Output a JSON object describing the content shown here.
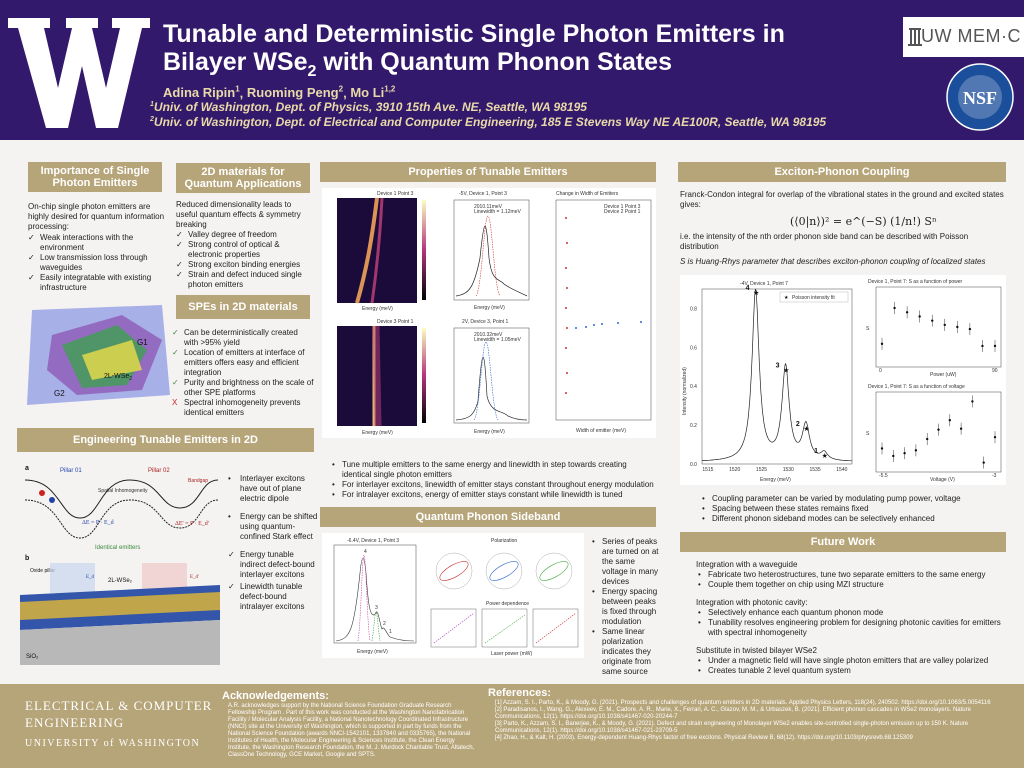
{
  "header": {
    "title_line1": "Tunable and Deterministic Single Photon Emitters in",
    "title_line2_a": "Bilayer WSe",
    "title_line2_sub": "2",
    "title_line2_b": " with Quantum Phonon States",
    "authors": [
      {
        "name": "Adina Ripin",
        "sup": "1"
      },
      {
        "name": "Ruoming Peng",
        "sup": "2"
      },
      {
        "name": "Mo Li",
        "sup": "1,2"
      }
    ],
    "aff1_sup": "1",
    "aff1": "Univ. of Washington, Dept. of Physics, 3910 15th Ave. NE, Seattle, WA 98195",
    "aff2_sup": "2",
    "aff2": "Univ. of Washington, Dept. of Electrical and Computer Engineering, 185 E Stevens Way NE AE100R, Seattle, WA 98195",
    "logo_right": "UW MEM·C",
    "logo_nsf": "NSF"
  },
  "importance": {
    "title": "Importance of Single Photon Emitters",
    "intro": "On-chip single photon emitters are highly desired for quantum information processing:",
    "items": [
      "Weak interactions with the environment",
      "Low transmission loss through waveguides",
      "Easily integratable with existing infrastructure"
    ],
    "label_g1": "G1",
    "label_g2": "G2",
    "label_wse2": "2L-WSe",
    "label_wse2_sub": "2"
  },
  "twod": {
    "title": "2D materials for Quantum Applications",
    "intro": "Reduced dimensionality leads to useful quantum effects & symmetry breaking",
    "items": [
      "Valley degree of freedom",
      "Strong control of optical & electronic properties",
      "Strong exciton binding energies",
      "Strain and defect induced single photon emitters"
    ]
  },
  "spes": {
    "title": "SPEs in 2D materials",
    "items": [
      {
        "mark": "✓",
        "text": "Can be deterministically created with >95% yield"
      },
      {
        "mark": "✓",
        "text": "Location of emitters at interface of emitters offers easy and efficient integration"
      },
      {
        "mark": "✓",
        "text": "Purity and brightness on the scale of other SPE platforms"
      },
      {
        "mark": "X",
        "text": "Spectral inhomogeneity prevents identical emitters"
      }
    ]
  },
  "engineering": {
    "title": "Engineering Tunable Emitters in 2D",
    "fig_a": "a",
    "fig_b": "b",
    "pillar1": "Pillar 01",
    "pillar2": "Pillar 02",
    "bandgap": "Bandgap",
    "spatial": "Spatial Inhomogeneity",
    "eq1": "ΔE = P · E_d",
    "eq2": "ΔE' = P · E_d'",
    "identical": "Identical emitters",
    "oxide": "Oxide pillar",
    "ed": "E_d",
    "ed2": "E_d'",
    "wse2": "2L-WSe₂",
    "sio2": "SiO₂",
    "items": [
      {
        "mark": "•",
        "text": "Interlayer excitons have out of plane electric dipole"
      },
      {
        "mark": "•",
        "text": "Energy can be shifted using quantum-confined Stark effect"
      },
      {
        "mark": "✓",
        "text": "Energy tunable indirect defect-bound interlayer excitons"
      },
      {
        "mark": "✓",
        "text": "Linewidth tunable defect-bound intralayer excitons"
      }
    ]
  },
  "tunable": {
    "title": "Properties of Tunable Emitters",
    "map1_title": "Device 1 Point 3",
    "map2_title": "Device 3 Point 1",
    "spec1_title": "-5V, Device 1, Point 3",
    "spec2_title": "2V, Device 3, Point 1",
    "spec1_legend": [
      "2010.11meV",
      "Linewidth = 1.12meV"
    ],
    "spec2_legend": [
      "2010.32meV",
      "Linewidth = 1.05meV"
    ],
    "scatter_title": "Change in Width of Emitters",
    "scatter_legend": [
      "Device 1 Point 3",
      "Device 2 Point 1"
    ],
    "xlabel_energy": "Energy (meV)",
    "ylabel_voltage": "Voltage (V)",
    "xlabel_width": "Width of emitter (meV)",
    "ylabel_center": "Center wavelength of emitter (nm)",
    "items": [
      "Tune multiple emitters to the same energy and linewidth in step towards creating identical single photon emitters",
      "For interlayer excitons, linewidth of emitter stays constant throughout energy modulation",
      "For intralayer excitons, energy of emitter stays constant while linewidth is tuned"
    ]
  },
  "sideband": {
    "title": "Quantum Phonon Sideband",
    "plot_title": "-6.4V, Device 1, Point 3",
    "polar_title": "Polarization",
    "power_title": "Power dependence",
    "xlabel": "Energy (meV)",
    "ylabel": "Intensity (normalized)",
    "xlabel_power": "Laser power (mW)",
    "peaks": [
      "4",
      "3",
      "2",
      "1"
    ],
    "items": [
      "Series of peaks are turned on at the same voltage in many devices",
      "Energy spacing between peaks is fixed through modulation",
      "Same linear polarization indicates they originate from same source"
    ]
  },
  "exciton": {
    "title": "Exciton-Phonon Coupling",
    "intro": "Franck-Condon integral for overlap of the vibrational states in the ground and excited states gives:",
    "equation": "(⟨0|n⟩)² = e^(−S) (1/n!) Sⁿ",
    "note": "i.e. the intensity of the nth order phonon side band can be described with Poisson distribution",
    "hr_note": "S is Huang-Rhys parameter that describes exciton-phonon coupling of localized states",
    "plot_title": "-4V, Device 1, Point 7",
    "legend": "Poisson intensity fit",
    "xlabel": "Energy (meV)",
    "ylabel": "Intensity (normalized)",
    "peaks": [
      "4",
      "3",
      "2",
      "1"
    ],
    "power_title": "Device 1, Point 7: S as a function of power",
    "power_xlabel": "Power (uW)",
    "voltage_title": "Device 1, Point 7: S as a function of voltage",
    "voltage_xlabel": "Voltage (V)",
    "s_label": "S",
    "items": [
      "Coupling parameter can be varied by modulating pump power, voltage",
      "Spacing between these states remains fixed",
      "Different phonon sideband modes can be selectively enhanced"
    ]
  },
  "future": {
    "title": "Future Work",
    "g1_head": "Integration with a waveguide",
    "g1_items": [
      "Fabricate two heterostructures, tune two separate emitters to the same energy",
      "Couple them together on chip using MZI structure"
    ],
    "g2_head": "Integration with photonic cavity:",
    "g2_items": [
      "Selectively enhance each quantum phonon mode",
      "Tunability resolves engineering problem for designing photonic cavities for emitters with spectral inhomogeneity"
    ],
    "g3_head": "Substitute in twisted bilayer WSe2",
    "g3_items": [
      "Under a magnetic field will have single photon emitters that are valley polarized",
      "Creates tunable 2 level quantum system"
    ]
  },
  "footer": {
    "ece1": "ELECTRICAL & COMPUTER",
    "ece2": "ENGINEERING",
    "uw": "UNIVERSITY of WASHINGTON",
    "ack_title": "Acknowledgements:",
    "ack_text": "A.R. acknowledges support by the National Science Foundation Graduate Research Fellowship Program . Part of this work was conducted at the Washington Nanofabrication Facility / Molecular Analysis Facility, a National Nanotechnology Coordinated Infrastructure (NNCI) site at the University of Washington, which is supported in part by funds from the National Science Foundation (awards NNCI-1542101, 1337840 and 0335765), the National Institutes of Health, the Molecular Engineering & Sciences Institute, the Clean Energy Institute, the Washington Research Foundation, the M. J. Murdock Charitable Trust, Altatech, ClassOne Technology, GCE Market, Google and SPTS.",
    "ref_title": "References:",
    "refs": [
      "[1] Azzam, S. I., Parto, K., & Moody, G. (2021). Prospects and challenges of quantum emitters in 2D materials. Applied Physics Letters, 118(24), 240502. https://doi.org/10.1063/5.0054116",
      "[2] Paradisanos, I., Wang, G., Alexeev, E. M., Cadore, A. R., Marie, X., Ferrari, A. C., Glazov, M. M., & Urbaszek, B. (2021). Efficient phonon cascades in WSe2 monolayers. Nature Communications, 12(1). https://doi.org/10.1038/s41467-020-20244-7",
      "[3] Parto, K., Azzam, S. I., Banerjee, K., & Moody, G. (2021). Defect and strain engineering of Monolayer WSe2 enables site-controlled single-photon emission up to 150 K. Nature Communications, 12(1). https://doi.org/10.1038/s41467-021-23709-5",
      "[4] Zhao, H., & Kalt, H. (2003). Energy-dependent Huang-Rhys factor of free excitons. Physical Review B, 68(12). https://doi.org/10.1103/physrevb.68.125309"
    ]
  },
  "chart_data": [
    {
      "type": "line",
      "title": "-4V, Device 1, Point 7",
      "xlabel": "Energy (meV)",
      "ylabel": "Intensity (normalized)",
      "x": [
        1515,
        1520,
        1525,
        1530,
        1535,
        1540
      ],
      "xlim": [
        1514,
        1542
      ],
      "ylim": [
        0,
        0.9
      ],
      "series": [
        {
          "name": "Poisson intensity fit",
          "x": [
            1524,
            1529.6,
            1533.4,
            1536.8
          ],
          "y": [
            0.88,
            0.48,
            0.18,
            0.04
          ]
        }
      ],
      "peak_labels": [
        "4",
        "3",
        "2",
        "1"
      ]
    },
    {
      "type": "scatter",
      "title": "Device 1, Point 7: S as a function of power",
      "xlabel": "Power (uW)",
      "ylabel": "S",
      "x": [
        0,
        10,
        20,
        30,
        40,
        50,
        60,
        70,
        80,
        90
      ],
      "y": [
        2.8,
        4.5,
        4.3,
        4.1,
        3.9,
        3.7,
        3.6,
        3.5,
        2.7,
        2.7
      ]
    },
    {
      "type": "scatter",
      "title": "Device 1, Point 7: S as a function of voltage",
      "xlabel": "Voltage (V)",
      "ylabel": "S",
      "x": [
        -5.5,
        -5.25,
        -5.0,
        -4.75,
        -4.5,
        -4.25,
        -4.0,
        -3.75,
        -3.5,
        -3.25,
        -3.0
      ],
      "y": [
        5.5,
        4.7,
        5.0,
        5.3,
        6.5,
        7.5,
        8.5,
        7.6,
        10.5,
        4.0,
        6.7
      ]
    }
  ]
}
